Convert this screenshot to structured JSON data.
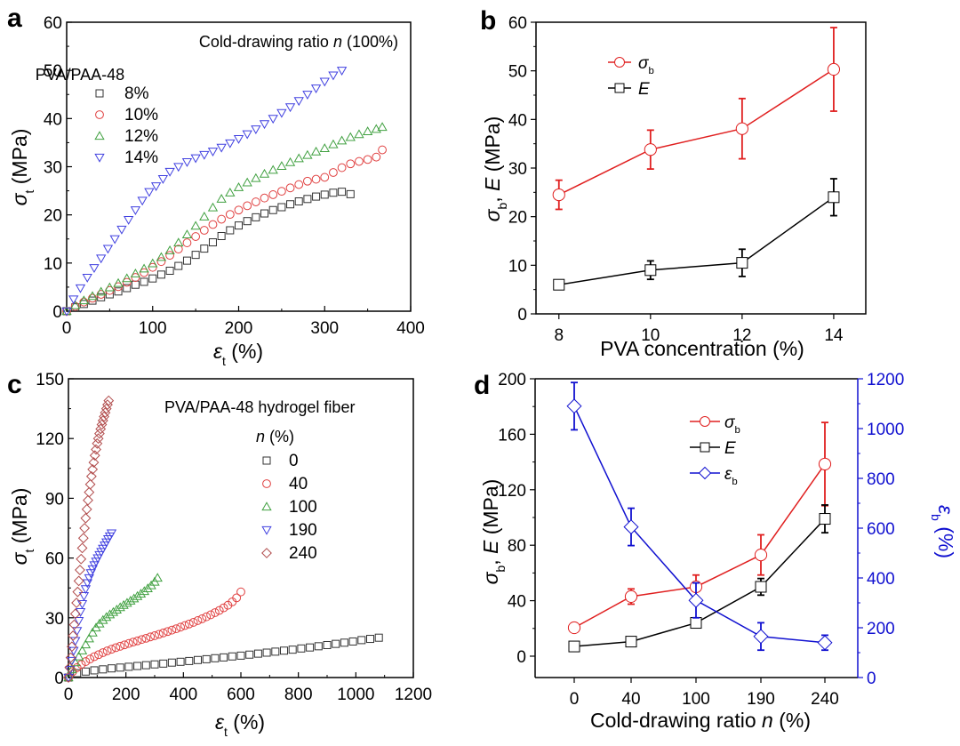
{
  "figure": {
    "panels": [
      "a",
      "b",
      "c",
      "d"
    ]
  },
  "chart_data": [
    {
      "panel": "a",
      "type": "scatter",
      "title": "",
      "annotation": "Cold-drawing ratio n (100%)",
      "annotation_parts": [
        "Cold-drawing ratio ",
        "n",
        " (100%)"
      ],
      "legend_title": "PVA/PAA-48",
      "legend_position": "top-left",
      "xlabel": "ε_t (%)",
      "xlabel_parts": [
        "ε",
        "t",
        " (%)"
      ],
      "ylabel": "σ_t (MPa)",
      "ylabel_parts": [
        "σ",
        "t",
        " (MPa)"
      ],
      "xlim": [
        0,
        400
      ],
      "ylim": [
        0,
        60
      ],
      "xticks": [
        0,
        100,
        200,
        300,
        400
      ],
      "yticks": [
        0,
        10,
        20,
        30,
        40,
        50,
        60
      ],
      "grid": false,
      "series": [
        {
          "name": "8%",
          "marker": "square",
          "color": "#333333",
          "x": [
            0,
            10,
            20,
            30,
            40,
            50,
            60,
            70,
            80,
            90,
            100,
            110,
            120,
            130,
            140,
            150,
            160,
            170,
            180,
            190,
            200,
            210,
            220,
            230,
            240,
            250,
            260,
            270,
            280,
            290,
            300,
            310,
            320,
            330
          ],
          "y": [
            0,
            0.8,
            1.5,
            2.2,
            2.9,
            3.5,
            4.1,
            4.8,
            5.5,
            6.1,
            6.8,
            7.6,
            8.4,
            9.4,
            10.5,
            11.7,
            13.0,
            14.3,
            15.6,
            16.8,
            17.8,
            18.7,
            19.5,
            20.3,
            21.0,
            21.6,
            22.2,
            22.8,
            23.3,
            23.8,
            24.2,
            24.6,
            24.8,
            24.3
          ]
        },
        {
          "name": "10%",
          "marker": "circle",
          "color": "#e04040",
          "x": [
            0,
            10,
            20,
            30,
            40,
            50,
            60,
            70,
            80,
            90,
            100,
            110,
            120,
            130,
            140,
            150,
            160,
            170,
            180,
            190,
            200,
            210,
            220,
            230,
            240,
            250,
            260,
            270,
            280,
            290,
            300,
            310,
            320,
            330,
            340,
            350,
            360,
            367
          ],
          "y": [
            0,
            1.0,
            1.9,
            2.7,
            3.5,
            4.3,
            5.1,
            6.0,
            7.0,
            8.0,
            9.1,
            10.3,
            11.6,
            12.9,
            14.2,
            15.5,
            16.8,
            18.0,
            19.1,
            20.1,
            21.0,
            21.9,
            22.7,
            23.5,
            24.2,
            24.9,
            25.6,
            26.3,
            27.0,
            27.4,
            27.8,
            28.8,
            29.8,
            30.6,
            31.1,
            31.5,
            32.0,
            33.5
          ]
        },
        {
          "name": "12%",
          "marker": "triangle-up",
          "color": "#40a040",
          "x": [
            0,
            10,
            20,
            30,
            40,
            50,
            60,
            70,
            80,
            90,
            100,
            110,
            120,
            130,
            140,
            150,
            160,
            170,
            180,
            190,
            200,
            210,
            220,
            230,
            240,
            250,
            260,
            270,
            280,
            290,
            300,
            310,
            320,
            330,
            340,
            350,
            360,
            367
          ],
          "y": [
            0,
            1.2,
            2.2,
            3.1,
            4.0,
            4.9,
            5.8,
            6.8,
            7.8,
            8.8,
            9.9,
            11.2,
            12.6,
            14.2,
            15.9,
            17.7,
            19.6,
            21.5,
            23.3,
            24.6,
            25.7,
            26.7,
            27.6,
            28.5,
            29.3,
            30.1,
            30.9,
            31.7,
            32.4,
            33.1,
            33.8,
            34.6,
            35.4,
            36.1,
            36.7,
            37.3,
            37.8,
            38.2
          ]
        },
        {
          "name": "14%",
          "marker": "triangle-down",
          "color": "#4040e0",
          "x": [
            0,
            8,
            16,
            24,
            32,
            40,
            48,
            56,
            64,
            72,
            80,
            88,
            96,
            104,
            112,
            120,
            130,
            140,
            150,
            160,
            170,
            180,
            190,
            200,
            210,
            220,
            230,
            240,
            250,
            260,
            270,
            280,
            290,
            300,
            310,
            320
          ],
          "y": [
            0,
            2.5,
            4.8,
            7.0,
            9.0,
            11.0,
            13.0,
            15.0,
            17.0,
            19.0,
            21.0,
            23.0,
            24.8,
            26.0,
            27.5,
            29.0,
            30.0,
            31.0,
            31.8,
            32.5,
            33.2,
            34.0,
            34.9,
            35.8,
            36.8,
            37.8,
            38.9,
            40.0,
            41.2,
            42.4,
            43.7,
            45.0,
            46.3,
            47.7,
            49.0,
            50.0
          ]
        }
      ]
    },
    {
      "panel": "b",
      "type": "line",
      "title": "",
      "legend_position": "top-left",
      "xlabel": "PVA concentration  (%)",
      "ylabel": "σ_b, E (MPa)",
      "ylabel_parts": [
        "σ",
        "b",
        ", ",
        "E",
        " (MPa)"
      ],
      "xlim": [
        7.5,
        14.7
      ],
      "ylim": [
        0,
        60
      ],
      "xticks": [
        8,
        10,
        12,
        14
      ],
      "yticks": [
        0,
        10,
        20,
        30,
        40,
        50,
        60
      ],
      "grid": false,
      "x": [
        8,
        10,
        12,
        14
      ],
      "series": [
        {
          "name": "σ_b",
          "name_parts": [
            "σ",
            "b"
          ],
          "marker": "circle",
          "color": "#e02020",
          "values": [
            24.5,
            33.8,
            38.1,
            50.3
          ],
          "errors": [
            3.0,
            4.0,
            6.2,
            8.6
          ]
        },
        {
          "name": "E",
          "name_parts": [
            "E",
            ""
          ],
          "marker": "square",
          "color": "#000000",
          "values": [
            6.0,
            9.0,
            10.5,
            24.0
          ],
          "errors": [
            0.8,
            1.9,
            2.8,
            3.8
          ]
        }
      ]
    },
    {
      "panel": "c",
      "type": "scatter",
      "title": "",
      "annotation": "PVA/PAA-48 hydrogel fiber",
      "legend_title": "n (%)",
      "legend_title_parts": [
        "n",
        " (%)"
      ],
      "legend_position": "top-right",
      "xlabel": "ε_t (%)",
      "xlabel_parts": [
        "ε",
        "t",
        " (%)"
      ],
      "ylabel": "σ_t (MPa)",
      "ylabel_parts": [
        "σ",
        "t",
        " (MPa)"
      ],
      "xlim": [
        0,
        1200
      ],
      "ylim": [
        0,
        150
      ],
      "xticks": [
        0,
        200,
        400,
        600,
        800,
        1000,
        1200
      ],
      "yticks": [
        0,
        30,
        60,
        90,
        120,
        150
      ],
      "grid": false,
      "series": [
        {
          "name": "0",
          "marker": "square",
          "color": "#333333",
          "x": [
            0,
            30,
            60,
            90,
            120,
            150,
            180,
            210,
            240,
            270,
            300,
            330,
            360,
            390,
            420,
            450,
            480,
            510,
            540,
            570,
            600,
            630,
            660,
            690,
            720,
            750,
            780,
            810,
            840,
            870,
            900,
            930,
            960,
            990,
            1020,
            1050,
            1080
          ],
          "y": [
            0,
            2.2,
            3.0,
            3.6,
            4.1,
            4.6,
            5.0,
            5.4,
            5.8,
            6.2,
            6.6,
            7.0,
            7.5,
            7.9,
            8.3,
            8.8,
            9.2,
            9.7,
            10.1,
            10.6,
            11.0,
            11.5,
            12.0,
            12.5,
            13.0,
            13.5,
            14.0,
            14.6,
            15.1,
            15.7,
            16.3,
            16.9,
            17.5,
            18.1,
            18.8,
            19.4,
            20.0
          ]
        },
        {
          "name": "40",
          "marker": "circle",
          "color": "#e04040",
          "x": [
            0,
            15,
            30,
            45,
            60,
            75,
            90,
            105,
            120,
            135,
            150,
            165,
            180,
            195,
            210,
            225,
            240,
            255,
            270,
            285,
            300,
            315,
            330,
            345,
            360,
            375,
            390,
            405,
            420,
            435,
            450,
            465,
            480,
            495,
            510,
            525,
            540,
            555,
            570,
            585,
            600
          ],
          "y": [
            0,
            3.0,
            5.0,
            6.6,
            8.0,
            9.3,
            10.5,
            11.5,
            12.5,
            13.4,
            14.2,
            15.0,
            15.7,
            16.4,
            17.1,
            17.8,
            18.4,
            19.1,
            19.7,
            20.4,
            21.0,
            21.7,
            22.4,
            23.1,
            23.8,
            24.5,
            25.3,
            26.1,
            26.9,
            27.7,
            28.6,
            29.5,
            30.5,
            31.5,
            32.6,
            33.7,
            35.0,
            36.3,
            38.0,
            40.0,
            43.0
          ]
        },
        {
          "name": "100",
          "marker": "triangle-up",
          "color": "#40a040",
          "x": [
            0,
            12,
            24,
            36,
            48,
            60,
            72,
            84,
            96,
            108,
            120,
            132,
            144,
            156,
            168,
            180,
            192,
            204,
            216,
            228,
            240,
            252,
            264,
            276,
            288,
            300,
            310
          ],
          "y": [
            0,
            4.0,
            7.5,
            10.5,
            13.5,
            16.5,
            19.5,
            22.5,
            25.0,
            27.0,
            28.8,
            30.3,
            31.6,
            32.8,
            34.0,
            35.2,
            36.3,
            37.4,
            38.5,
            39.6,
            40.8,
            42.0,
            43.3,
            44.7,
            46.2,
            48.0,
            50.0
          ]
        },
        {
          "name": "190",
          "marker": "triangle-down",
          "color": "#4040e0",
          "x": [
            0,
            6,
            12,
            18,
            24,
            30,
            36,
            42,
            48,
            54,
            60,
            66,
            72,
            78,
            84,
            90,
            96,
            102,
            108,
            114,
            120,
            126,
            132,
            138,
            144,
            150
          ],
          "y": [
            0,
            4.0,
            8.5,
            13.5,
            18.5,
            23.5,
            28.5,
            33.0,
            37.0,
            41.0,
            44.5,
            47.5,
            50.0,
            52.5,
            54.5,
            56.5,
            58.3,
            60.0,
            61.6,
            63.2,
            64.8,
            66.4,
            68.0,
            69.6,
            71.0,
            72.5
          ]
        },
        {
          "name": "240",
          "marker": "diamond",
          "color": "#b04a4a",
          "x": [
            0,
            4,
            8,
            12,
            16,
            20,
            24,
            28,
            32,
            36,
            40,
            44,
            48,
            52,
            56,
            60,
            64,
            68,
            72,
            76,
            80,
            84,
            88,
            92,
            96,
            100,
            104,
            108,
            112,
            116,
            120,
            124,
            128,
            132,
            136,
            140
          ],
          "y": [
            0,
            5.0,
            10.0,
            15.5,
            21.0,
            26.5,
            32.0,
            37.5,
            43.0,
            48.5,
            54.0,
            59.5,
            65.0,
            70.0,
            75.0,
            80.0,
            84.5,
            89.0,
            93.0,
            97.0,
            101.0,
            104.5,
            108.0,
            111.5,
            114.5,
            117.5,
            120.0,
            122.5,
            124.8,
            127.0,
            129.0,
            131.0,
            133.0,
            135.0,
            137.0,
            139.0
          ]
        }
      ]
    },
    {
      "panel": "d",
      "type": "line",
      "title": "",
      "legend_position": "top-center",
      "xlabel": "Cold-drawing ratio n (%)",
      "xlabel_parts": [
        "Cold-drawing ratio ",
        "n",
        " (%)"
      ],
      "ylabel": "σ_b, E (MPa)",
      "ylabel_parts": [
        "σ",
        "b",
        ", ",
        "E",
        " (MPa)"
      ],
      "ylabel_right": "ε_b (%)",
      "ylabel_right_parts": [
        "ε",
        "b",
        " (%)"
      ],
      "categories": [
        "0",
        "40",
        "100",
        "190",
        "240"
      ],
      "ylim": [
        -15.4,
        200
      ],
      "ylim_right": [
        0,
        1200
      ],
      "yticks": [
        0,
        40,
        80,
        120,
        160,
        200
      ],
      "yticks_right": [
        0,
        200,
        400,
        600,
        800,
        1000,
        1200
      ],
      "right_axis_color": "#1010d0",
      "grid": false,
      "series": [
        {
          "name": "σ_b",
          "name_parts": [
            "σ",
            "b"
          ],
          "axis": "left",
          "marker": "circle",
          "color": "#e02020",
          "values": [
            20.5,
            43.0,
            50.0,
            73.0,
            138.5
          ],
          "errors": [
            1.5,
            5.5,
            8.5,
            14.5,
            30.0
          ]
        },
        {
          "name": "E",
          "name_parts": [
            "E",
            ""
          ],
          "axis": "left",
          "marker": "square",
          "color": "#000000",
          "values": [
            7.0,
            10.5,
            24.0,
            50.0,
            99.0
          ],
          "errors": [
            1.0,
            1.5,
            3.0,
            6.0,
            10.0
          ]
        },
        {
          "name": "ε_b",
          "name_parts": [
            "ε",
            "b"
          ],
          "axis": "right",
          "marker": "diamond",
          "color": "#1010d0",
          "values": [
            1090,
            605,
            310,
            165,
            140
          ],
          "errors": [
            95,
            75,
            70,
            55,
            30
          ]
        }
      ]
    }
  ]
}
